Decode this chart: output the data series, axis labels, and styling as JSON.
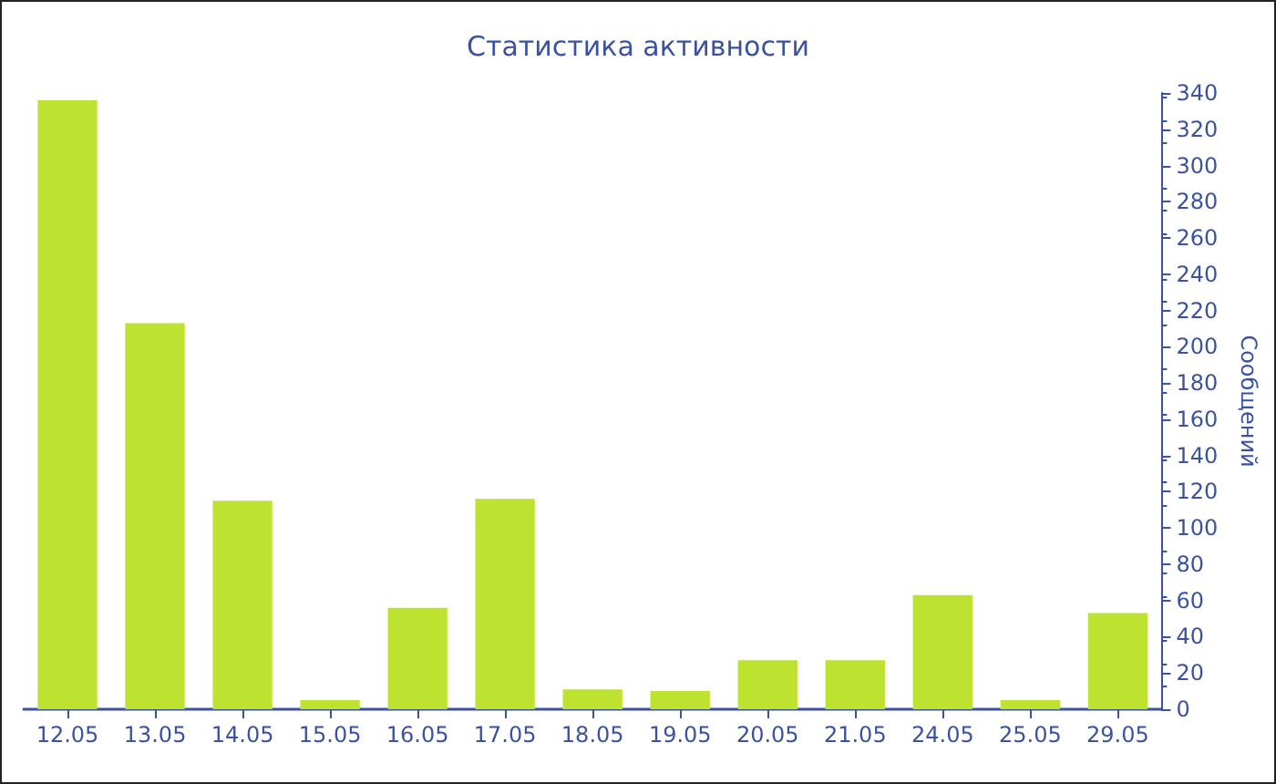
{
  "chart_data": {
    "type": "bar",
    "title": "Статистика активности",
    "ylabel": "Сообщений",
    "categories": [
      "12.05",
      "13.05",
      "14.05",
      "15.05",
      "16.05",
      "17.05",
      "18.05",
      "19.05",
      "20.05",
      "21.05",
      "24.05",
      "25.05",
      "29.05"
    ],
    "values": [
      336,
      213,
      115,
      5,
      56,
      116,
      11,
      10,
      27,
      27,
      63,
      5,
      53
    ],
    "color": "#bde22f",
    "ylim": [
      0,
      340
    ],
    "yticks": [
      0,
      20,
      40,
      60,
      80,
      100,
      120,
      140,
      160,
      180,
      200,
      220,
      240,
      260,
      280,
      300,
      320,
      340
    ],
    "grid": false
  }
}
